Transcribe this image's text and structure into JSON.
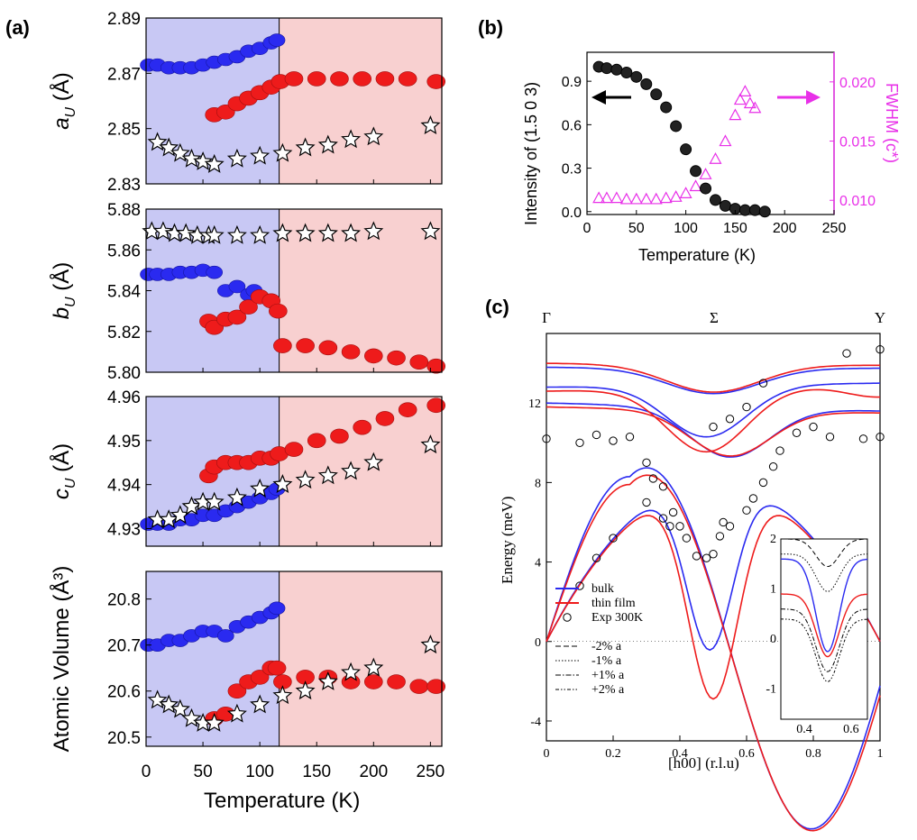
{
  "colors": {
    "blue": "#2a2af0",
    "red": "#ee1b1b",
    "blue_bg": "#c8c8f4",
    "red_bg": "#f8d0d0",
    "magenta": "#e830e8",
    "star_fill": "#ffffff"
  },
  "panel_a": {
    "label": "(a)",
    "xlabel": "Temperature (K)",
    "xticks": [
      "0",
      "50",
      "100",
      "150",
      "200",
      "250"
    ],
    "transition_T": 117,
    "subplots": [
      {
        "ylabel_sym": "a",
        "ylabel_sub": "U",
        "ylabel_unit": " (Å)",
        "ylim": [
          2.83,
          2.89
        ],
        "yticks": [
          "2.83",
          "2.85",
          "2.87",
          "2.89"
        ],
        "blue": [
          [
            2,
            2.873
          ],
          [
            10,
            2.873
          ],
          [
            20,
            2.872
          ],
          [
            30,
            2.872
          ],
          [
            40,
            2.872
          ],
          [
            50,
            2.873
          ],
          [
            60,
            2.874
          ],
          [
            70,
            2.875
          ],
          [
            80,
            2.876
          ],
          [
            90,
            2.878
          ],
          [
            100,
            2.879
          ],
          [
            110,
            2.881
          ],
          [
            115,
            2.882
          ]
        ],
        "red": [
          [
            60,
            2.855
          ],
          [
            70,
            2.856
          ],
          [
            80,
            2.859
          ],
          [
            90,
            2.861
          ],
          [
            100,
            2.863
          ],
          [
            110,
            2.865
          ],
          [
            118,
            2.867
          ],
          [
            130,
            2.868
          ],
          [
            150,
            2.868
          ],
          [
            170,
            2.868
          ],
          [
            190,
            2.868
          ],
          [
            210,
            2.868
          ],
          [
            230,
            2.868
          ],
          [
            255,
            2.867
          ]
        ],
        "stars": [
          [
            10,
            2.845
          ],
          [
            20,
            2.843
          ],
          [
            30,
            2.841
          ],
          [
            40,
            2.839
          ],
          [
            50,
            2.838
          ],
          [
            60,
            2.837
          ],
          [
            80,
            2.839
          ],
          [
            100,
            2.84
          ],
          [
            120,
            2.841
          ],
          [
            140,
            2.843
          ],
          [
            160,
            2.844
          ],
          [
            180,
            2.846
          ],
          [
            200,
            2.847
          ],
          [
            250,
            2.851
          ]
        ]
      },
      {
        "ylabel_sym": "b",
        "ylabel_sub": "U",
        "ylabel_unit": " (Å)",
        "ylim": [
          5.8,
          5.88
        ],
        "yticks": [
          "5.80",
          "5.82",
          "5.84",
          "5.86",
          "5.88"
        ],
        "blue": [
          [
            2,
            5.848
          ],
          [
            10,
            5.848
          ],
          [
            20,
            5.848
          ],
          [
            30,
            5.849
          ],
          [
            40,
            5.849
          ],
          [
            50,
            5.85
          ],
          [
            60,
            5.849
          ],
          [
            70,
            5.84
          ],
          [
            80,
            5.842
          ],
          [
            90,
            5.838
          ],
          [
            95,
            5.84
          ]
        ],
        "red": [
          [
            55,
            5.825
          ],
          [
            60,
            5.822
          ],
          [
            70,
            5.826
          ],
          [
            80,
            5.827
          ],
          [
            90,
            5.832
          ],
          [
            100,
            5.837
          ],
          [
            110,
            5.835
          ],
          [
            116,
            5.83
          ],
          [
            120,
            5.813
          ],
          [
            140,
            5.813
          ],
          [
            160,
            5.812
          ],
          [
            180,
            5.81
          ],
          [
            200,
            5.808
          ],
          [
            220,
            5.807
          ],
          [
            240,
            5.805
          ],
          [
            255,
            5.803
          ]
        ],
        "stars": [
          [
            5,
            5.869
          ],
          [
            15,
            5.869
          ],
          [
            25,
            5.868
          ],
          [
            35,
            5.868
          ],
          [
            45,
            5.867
          ],
          [
            55,
            5.867
          ],
          [
            60,
            5.867
          ],
          [
            80,
            5.867
          ],
          [
            100,
            5.867
          ],
          [
            120,
            5.868
          ],
          [
            140,
            5.868
          ],
          [
            160,
            5.868
          ],
          [
            180,
            5.868
          ],
          [
            200,
            5.869
          ],
          [
            250,
            5.869
          ]
        ]
      },
      {
        "ylabel_sym": "c",
        "ylabel_sub": "U",
        "ylabel_unit": " (Å)",
        "ylim": [
          4.926,
          4.96
        ],
        "yticks": [
          "4.93",
          "4.94",
          "4.95",
          "4.96"
        ],
        "blue": [
          [
            2,
            4.931
          ],
          [
            10,
            4.931
          ],
          [
            20,
            4.931
          ],
          [
            30,
            4.932
          ],
          [
            40,
            4.932
          ],
          [
            50,
            4.933
          ],
          [
            60,
            4.933
          ],
          [
            70,
            4.934
          ],
          [
            80,
            4.935
          ],
          [
            90,
            4.936
          ],
          [
            100,
            4.937
          ],
          [
            110,
            4.938
          ],
          [
            115,
            4.939
          ]
        ],
        "red": [
          [
            55,
            4.942
          ],
          [
            60,
            4.944
          ],
          [
            70,
            4.945
          ],
          [
            80,
            4.945
          ],
          [
            90,
            4.945
          ],
          [
            100,
            4.946
          ],
          [
            110,
            4.946
          ],
          [
            117,
            4.947
          ],
          [
            130,
            4.948
          ],
          [
            150,
            4.95
          ],
          [
            170,
            4.951
          ],
          [
            190,
            4.953
          ],
          [
            210,
            4.955
          ],
          [
            230,
            4.957
          ],
          [
            255,
            4.958
          ]
        ],
        "stars": [
          [
            10,
            4.932
          ],
          [
            20,
            4.932
          ],
          [
            30,
            4.933
          ],
          [
            40,
            4.935
          ],
          [
            50,
            4.936
          ],
          [
            60,
            4.936
          ],
          [
            80,
            4.937
          ],
          [
            100,
            4.939
          ],
          [
            120,
            4.94
          ],
          [
            140,
            4.941
          ],
          [
            160,
            4.942
          ],
          [
            180,
            4.943
          ],
          [
            200,
            4.945
          ],
          [
            250,
            4.949
          ]
        ]
      },
      {
        "ylabel_sym": "Atomic Volume",
        "ylabel_sub": "",
        "ylabel_unit": " (Å³)",
        "ylim": [
          20.48,
          20.86
        ],
        "yticks": [
          "20.5",
          "20.6",
          "20.7",
          "20.8"
        ],
        "blue": [
          [
            2,
            20.7
          ],
          [
            10,
            20.7
          ],
          [
            20,
            20.71
          ],
          [
            30,
            20.71
          ],
          [
            40,
            20.72
          ],
          [
            50,
            20.73
          ],
          [
            60,
            20.73
          ],
          [
            70,
            20.72
          ],
          [
            80,
            20.74
          ],
          [
            90,
            20.75
          ],
          [
            100,
            20.76
          ],
          [
            110,
            20.77
          ],
          [
            115,
            20.78
          ]
        ],
        "red": [
          [
            60,
            20.54
          ],
          [
            70,
            20.55
          ],
          [
            80,
            20.6
          ],
          [
            90,
            20.62
          ],
          [
            100,
            20.63
          ],
          [
            110,
            20.65
          ],
          [
            115,
            20.65
          ],
          [
            120,
            20.62
          ],
          [
            140,
            20.63
          ],
          [
            160,
            20.63
          ],
          [
            180,
            20.62
          ],
          [
            200,
            20.62
          ],
          [
            220,
            20.62
          ],
          [
            240,
            20.61
          ],
          [
            255,
            20.61
          ]
        ],
        "stars": [
          [
            10,
            20.58
          ],
          [
            20,
            20.57
          ],
          [
            30,
            20.56
          ],
          [
            40,
            20.54
          ],
          [
            50,
            20.53
          ],
          [
            60,
            20.53
          ],
          [
            80,
            20.55
          ],
          [
            100,
            20.57
          ],
          [
            120,
            20.59
          ],
          [
            140,
            20.6
          ],
          [
            160,
            20.62
          ],
          [
            180,
            20.64
          ],
          [
            200,
            20.65
          ],
          [
            250,
            20.7
          ]
        ]
      }
    ]
  },
  "panel_b": {
    "label": "(b)",
    "xlabel": "Temperature (K)",
    "ylabel_left": "Intensity of (1.5 0 3)",
    "ylabel_right": "FWHM (c*)",
    "xticks": [
      "0",
      "50",
      "100",
      "150",
      "200",
      "250"
    ],
    "yticks_left": [
      "0.0",
      "0.3",
      "0.6",
      "0.9"
    ],
    "yticks_right": [
      "0.010",
      "0.015",
      "0.020"
    ],
    "intensity": [
      [
        12,
        1.0
      ],
      [
        20,
        0.99
      ],
      [
        30,
        0.98
      ],
      [
        40,
        0.96
      ],
      [
        50,
        0.93
      ],
      [
        60,
        0.88
      ],
      [
        70,
        0.81
      ],
      [
        80,
        0.72
      ],
      [
        90,
        0.59
      ],
      [
        100,
        0.43
      ],
      [
        110,
        0.28
      ],
      [
        120,
        0.16
      ],
      [
        130,
        0.08
      ],
      [
        140,
        0.04
      ],
      [
        150,
        0.02
      ],
      [
        160,
        0.01
      ],
      [
        170,
        0.01
      ],
      [
        180,
        0.0
      ]
    ],
    "fwhm": [
      [
        12,
        0.0102
      ],
      [
        20,
        0.0102
      ],
      [
        30,
        0.0102
      ],
      [
        40,
        0.0101
      ],
      [
        50,
        0.0101
      ],
      [
        60,
        0.0101
      ],
      [
        70,
        0.0101
      ],
      [
        80,
        0.0102
      ],
      [
        90,
        0.0103
      ],
      [
        100,
        0.0106
      ],
      [
        110,
        0.0112
      ],
      [
        120,
        0.0122
      ],
      [
        130,
        0.0135
      ],
      [
        140,
        0.015
      ],
      [
        150,
        0.0172
      ],
      [
        155,
        0.0185
      ],
      [
        160,
        0.0192
      ],
      [
        165,
        0.0182
      ],
      [
        170,
        0.0178
      ]
    ]
  },
  "panel_c": {
    "label": "(c)",
    "xlabel": "[h00] (r.l.u)",
    "ylabel": "Energy (meV)",
    "top_labels": [
      "Γ",
      "Σ",
      "Y"
    ],
    "xticks": [
      "0",
      "0.2",
      "0.4",
      "0.6",
      "0.8",
      "1"
    ],
    "yticks": [
      "-4",
      "0",
      "4",
      "8",
      "12"
    ],
    "legend": [
      "bulk",
      "thin film",
      "Exp 300K",
      "-2% a",
      "-1% a",
      "+1% a",
      "+2% a"
    ],
    "exp_points": [
      [
        0,
        10.2
      ],
      [
        0.1,
        2.8
      ],
      [
        0.1,
        10
      ],
      [
        0.15,
        4.2
      ],
      [
        0.15,
        10.4
      ],
      [
        0.2,
        5.2
      ],
      [
        0.2,
        10.1
      ],
      [
        0.25,
        10.3
      ],
      [
        0.3,
        7
      ],
      [
        0.3,
        9
      ],
      [
        0.32,
        8.2
      ],
      [
        0.35,
        6.2
      ],
      [
        0.35,
        7.8
      ],
      [
        0.37,
        5.8
      ],
      [
        0.38,
        6.5
      ],
      [
        0.4,
        5.8
      ],
      [
        0.42,
        5.2
      ],
      [
        0.45,
        4.3
      ],
      [
        0.48,
        4.2
      ],
      [
        0.5,
        4.4
      ],
      [
        0.5,
        10.8
      ],
      [
        0.52,
        5.3
      ],
      [
        0.53,
        6
      ],
      [
        0.55,
        11.2
      ],
      [
        0.55,
        5.8
      ],
      [
        0.6,
        6.6
      ],
      [
        0.6,
        11.8
      ],
      [
        0.62,
        7.2
      ],
      [
        0.65,
        8
      ],
      [
        0.65,
        13
      ],
      [
        0.68,
        8.8
      ],
      [
        0.7,
        9.6
      ],
      [
        0.75,
        10.5
      ],
      [
        0.8,
        10.8
      ],
      [
        0.85,
        10.3
      ],
      [
        0.9,
        14.5
      ],
      [
        0.95,
        10.2
      ],
      [
        1.0,
        14.7
      ],
      [
        1.0,
        10.3
      ]
    ],
    "inset": {
      "xticks": [
        "0.4",
        "0.6"
      ],
      "yticks": [
        "-1",
        "0",
        "1",
        "2"
      ]
    }
  }
}
